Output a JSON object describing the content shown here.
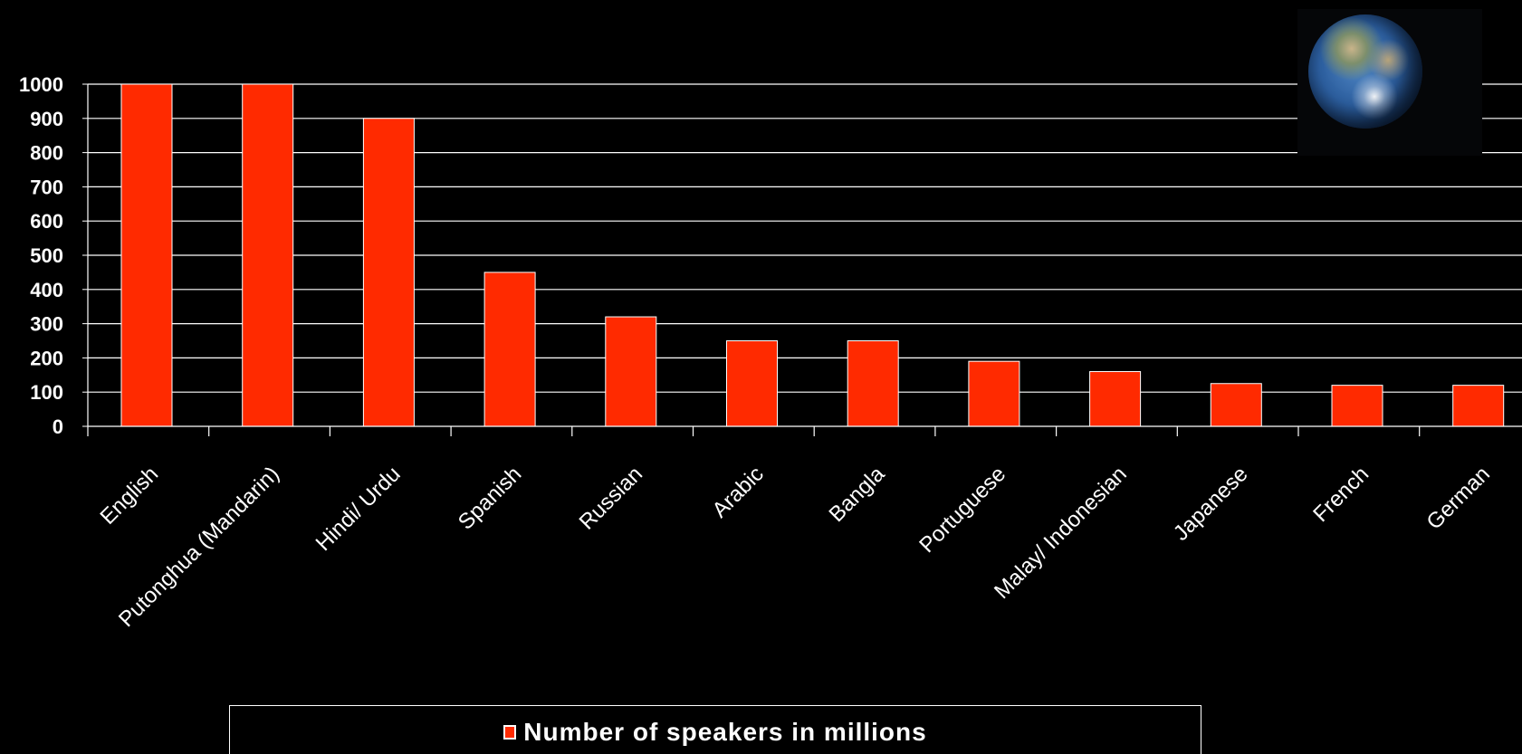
{
  "chart_data": {
    "type": "bar",
    "categories": [
      "English",
      "Putonghua (Mandarin)",
      "Hindi/ Urdu",
      "Spanish",
      "Russian",
      "Arabic",
      "Bangla",
      "Portuguese",
      "Malay/ Indonesian",
      "Japanese",
      "French",
      "German"
    ],
    "series": [
      {
        "name": "Number of speakers in millions",
        "values": [
          1000,
          1000,
          900,
          450,
          320,
          250,
          250,
          190,
          160,
          125,
          120,
          120
        ]
      }
    ],
    "ylim": [
      0,
      1000
    ],
    "yticks": [
      0,
      100,
      200,
      300,
      400,
      500,
      600,
      700,
      800,
      900,
      1000
    ],
    "grid": true,
    "legend": "bottom",
    "colors": {
      "bar": "#ff2a00",
      "bar_edge": "#ffffff",
      "grid": "#ffffff",
      "background": "#000000"
    }
  },
  "decoration": {
    "image_icon": "earth-globe-icon"
  }
}
